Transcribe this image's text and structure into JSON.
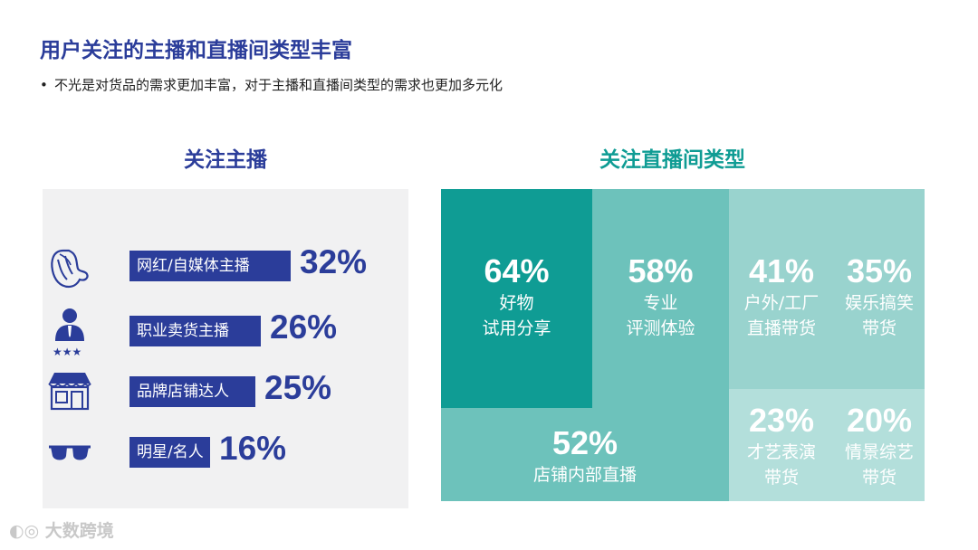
{
  "title": "用户关注的主播和直播间类型丰富",
  "subtitle": "不光是对货品的需求更加丰富，对于主播和直播间类型的需求也更加多元化",
  "watermark": "大数跨境",
  "colors": {
    "navy": "#2b3d9a",
    "teal_dark": "#0f9c94",
    "teal_mid": "#6dc2bb",
    "teal_light": "#99d3ce",
    "teal_pale": "#b3dfdb",
    "panel_bg": "#f1f1f2"
  },
  "chart_data": [
    {
      "type": "bar",
      "title": "关注主播",
      "categories": [
        "网红/自媒体主播",
        "职业卖货主播",
        "品牌店铺达人",
        "明星/名人"
      ],
      "values": [
        32,
        26,
        25,
        16
      ],
      "value_labels": [
        "32%",
        "26%",
        "25%",
        "16%"
      ],
      "icons": [
        "hair-woman-icon",
        "person-stars-icon",
        "storefront-icon",
        "sunglasses-icon"
      ]
    },
    {
      "type": "treemap",
      "title": "关注直播间类型",
      "items": [
        {
          "label_lines": [
            "好物",
            "试用分享"
          ],
          "value": 64,
          "value_label": "64%"
        },
        {
          "label_lines": [
            "专业",
            "评测体验"
          ],
          "value": 58,
          "value_label": "58%"
        },
        {
          "label_lines": [
            "店铺内部直播"
          ],
          "value": 52,
          "value_label": "52%"
        },
        {
          "label_lines": [
            "户外/工厂",
            "直播带货"
          ],
          "value": 41,
          "value_label": "41%"
        },
        {
          "label_lines": [
            "娱乐搞笑",
            "带货"
          ],
          "value": 35,
          "value_label": "35%"
        },
        {
          "label_lines": [
            "才艺表演",
            "带货"
          ],
          "value": 23,
          "value_label": "23%"
        },
        {
          "label_lines": [
            "情景综艺",
            "带货"
          ],
          "value": 20,
          "value_label": "20%"
        }
      ]
    }
  ]
}
